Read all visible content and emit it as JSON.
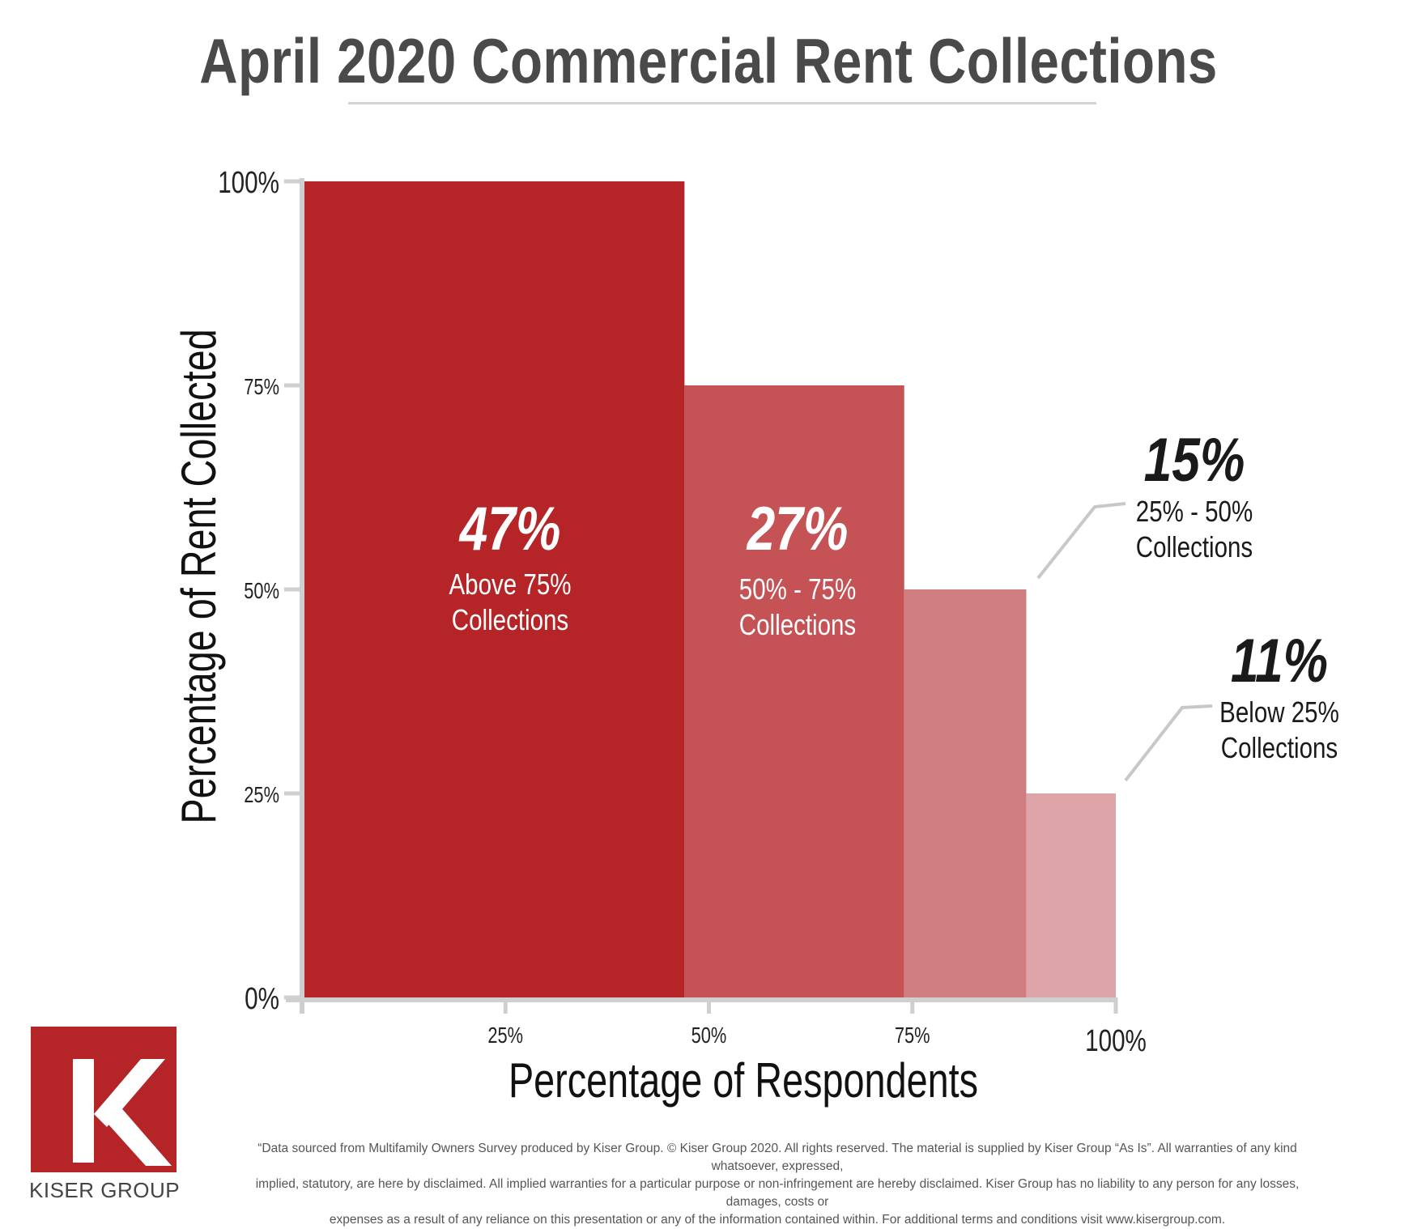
{
  "title": "April 2020 Commercial Rent Collections",
  "chart_data": {
    "type": "bar",
    "xlabel": "Percentage of Respondents",
    "ylabel": "Percentage of Rent Collected",
    "xlim": [
      0,
      100
    ],
    "ylim": [
      0,
      100
    ],
    "x_ticks": [
      "25%",
      "50%",
      "75%",
      "100%"
    ],
    "y_ticks": [
      "0%",
      "25%",
      "50%",
      "75%",
      "100%"
    ],
    "grid": false,
    "categories": [
      "Above 75% Collections",
      "50% - 75% Collections",
      "25% - 50% Collections",
      "Below 25% Collections"
    ],
    "bars": [
      {
        "share": 47,
        "share_label": "47%",
        "line1": "Above 75%",
        "line2": "Collections",
        "height": 100,
        "color": "#b52427"
      },
      {
        "share": 27,
        "share_label": "27%",
        "line1": "50% - 75%",
        "line2": "Collections",
        "height": 75,
        "color": "#c55254"
      },
      {
        "share": 15,
        "share_label": "15%",
        "line1": "25% - 50%",
        "line2": "Collections",
        "height": 50,
        "color": "#d07d7f"
      },
      {
        "share": 11,
        "share_label": "11%",
        "line1": "Below 25%",
        "line2": "Collections",
        "height": 25,
        "color": "#dea5a8"
      }
    ]
  },
  "footnote": [
    "“Data sourced from Multifamily Owners Survey produced by Kiser Group. © Kiser Group 2020. All rights reserved. The material is supplied by Kiser Group “As Is”. All warranties of any kind whatsoever, expressed,",
    "implied, statutory, are here by disclaimed. All implied warranties for a particular purpose or non-infringement are hereby disclaimed. Kiser Group has no liability to any person for any losses, damages, costs or",
    "expenses as a result of any reliance on this presentation or any of the information contained within. For additional terms and conditions visit www.kisergroup.com."
  ],
  "logo": {
    "letter": "K",
    "name": "KISER GROUP",
    "color": "#b52427"
  }
}
